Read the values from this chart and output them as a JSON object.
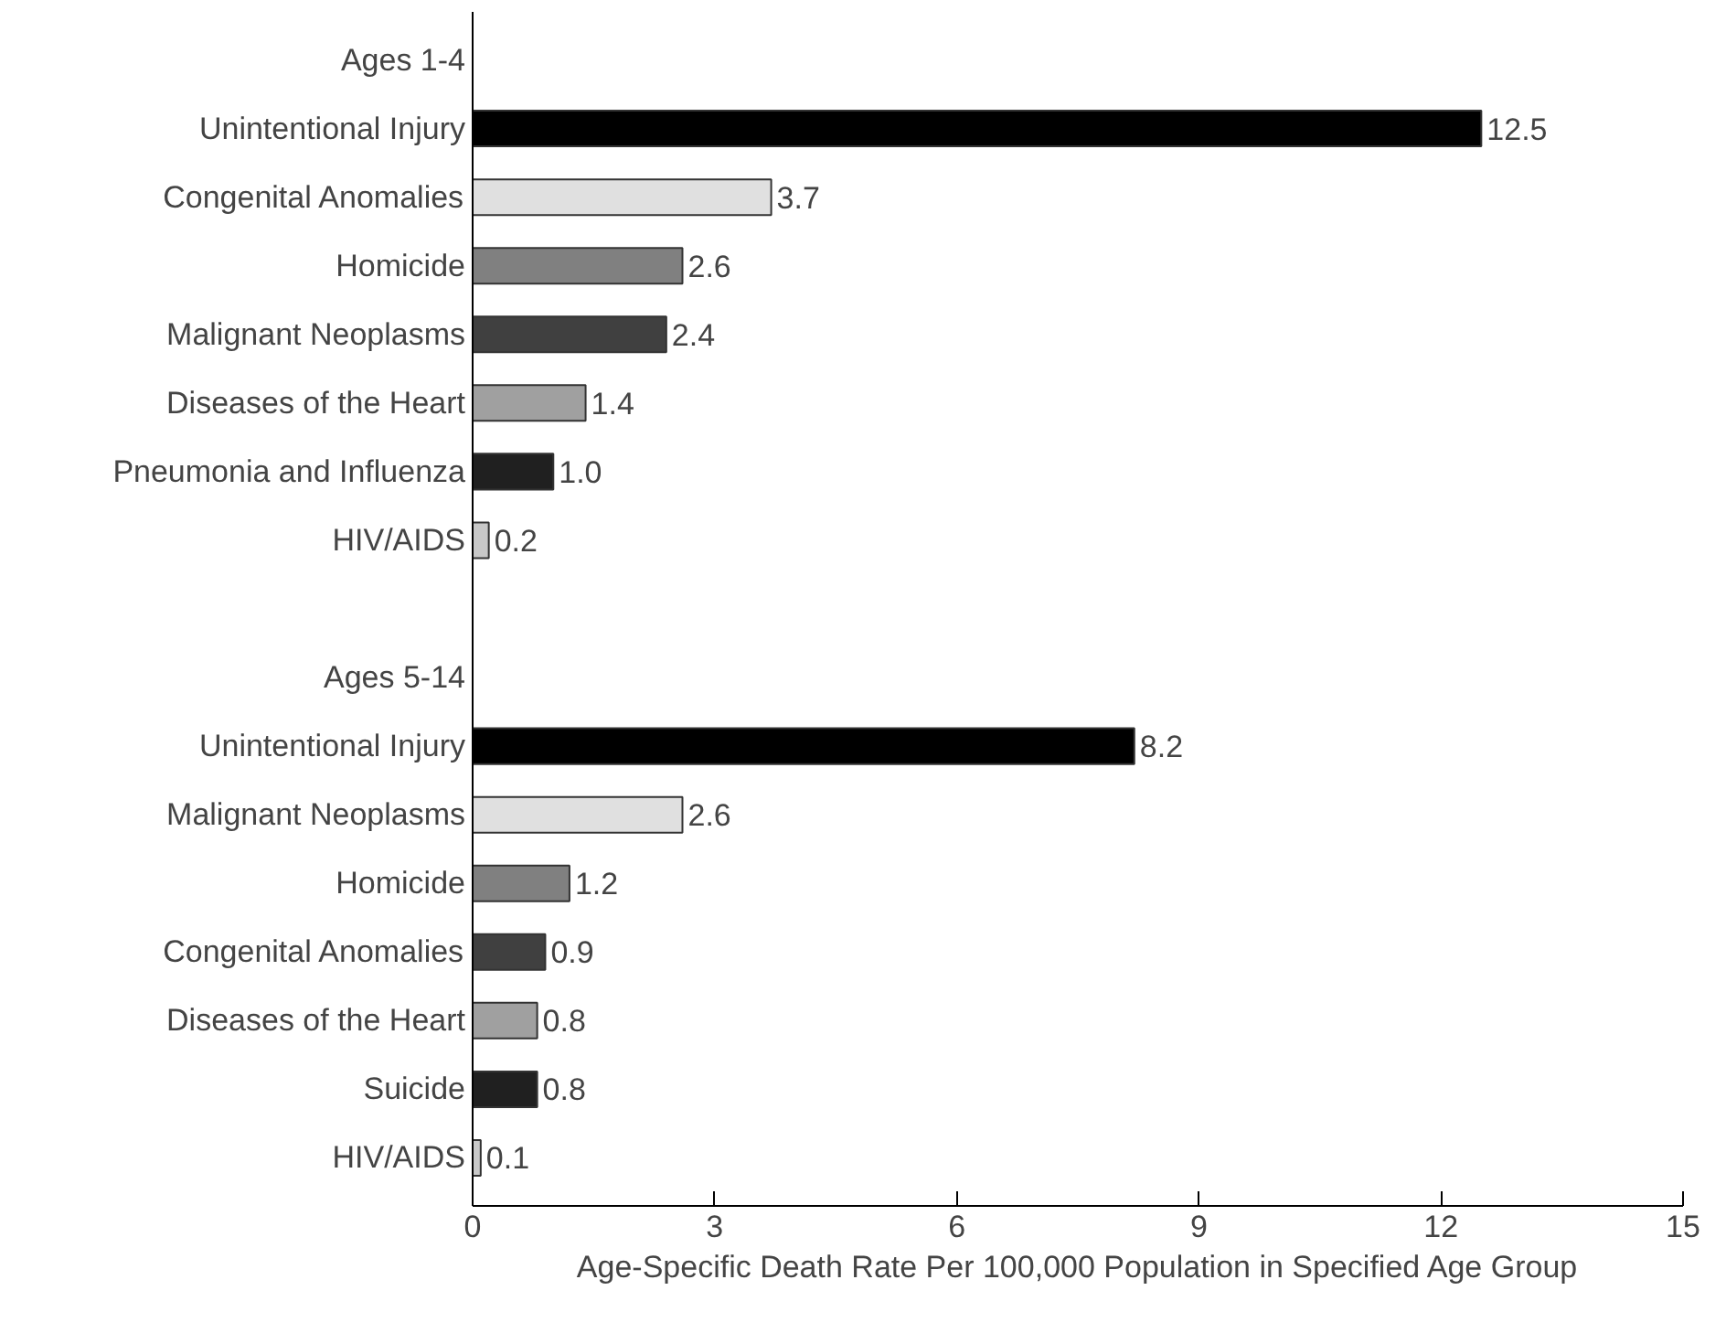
{
  "chart_data": {
    "type": "bar",
    "orientation": "horizontal",
    "xlabel": "Age-Specific Death Rate Per 100,000 Population in Specified Age Group",
    "categories": [
      "Ages 1-4",
      "Unintentional Injury",
      "Congenital Anomalies",
      "Homicide",
      "Malignant Neoplasms",
      "Diseases of the Heart",
      "Pneumonia and Influenza",
      "HIV/AIDS",
      null,
      "Ages 5-14",
      "Unintentional Injury",
      "Malignant Neoplasms",
      "Homicide",
      "Congenital Anomalies",
      "Diseases of the Heart",
      "Suicide",
      "HIV/AIDS"
    ],
    "values": [
      null,
      12.5,
      3.7,
      2.6,
      2.4,
      1.4,
      1.0,
      0.2,
      null,
      null,
      8.2,
      2.6,
      1.2,
      0.9,
      0.8,
      0.8,
      0.1
    ],
    "value_labels": [
      null,
      "12.5",
      "3.7",
      "2.6",
      "2.4",
      "1.4",
      "1.0",
      "0.2",
      null,
      null,
      "8.2",
      "2.6",
      "1.2",
      "0.9",
      "0.8",
      "0.8",
      "0.1"
    ],
    "colors": [
      null,
      "#000000",
      "#e0e0e0",
      "#808080",
      "#404040",
      "#a0a0a0",
      "#202020",
      "#c8c8c8",
      null,
      null,
      "#000000",
      "#e0e0e0",
      "#808080",
      "#404040",
      "#a0a0a0",
      "#202020",
      "#c8c8c8"
    ],
    "xlim": [
      0,
      15
    ],
    "xticks": [
      0,
      3,
      6,
      9,
      12,
      15
    ],
    "grid": false
  }
}
